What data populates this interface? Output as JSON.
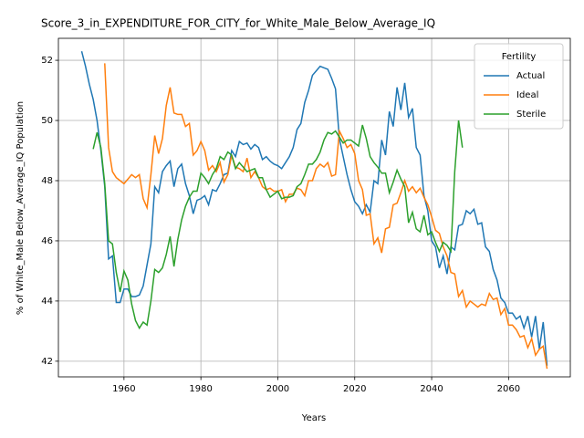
{
  "chart_data": {
    "type": "line",
    "title": "Score_3_in_EXPENDITURE_FOR_CITY_for_White_Male_Below_Average_IQ",
    "x_label": "Years",
    "y_label": "% of White_Male Below_Average_IQ Population",
    "legend_title": "Fertility",
    "legend_corner": "upper right",
    "grid": true,
    "xlim": [
      1942.95,
      2076.05
    ],
    "ylim": [
      41.48,
      52.73
    ],
    "xticks": [
      1960,
      1980,
      2000,
      2020,
      2040,
      2060
    ],
    "yticks": [
      42,
      44,
      46,
      48,
      50,
      52
    ],
    "x": [
      1949,
      1950,
      1951,
      1952,
      1953,
      1954,
      1955,
      1956,
      1957,
      1958,
      1959,
      1960,
      1961,
      1962,
      1963,
      1964,
      1965,
      1966,
      1967,
      1968,
      1969,
      1970,
      1971,
      1972,
      1973,
      1974,
      1975,
      1976,
      1977,
      1978,
      1979,
      1980,
      1981,
      1982,
      1983,
      1984,
      1985,
      1986,
      1987,
      1988,
      1989,
      1990,
      1991,
      1992,
      1993,
      1994,
      1995,
      1996,
      1997,
      1998,
      1999,
      2000,
      2001,
      2002,
      2003,
      2004,
      2005,
      2006,
      2007,
      2008,
      2009,
      2010,
      2011,
      2012,
      2013,
      2014,
      2015,
      2016,
      2017,
      2018,
      2019,
      2020,
      2021,
      2022,
      2023,
      2024,
      2025,
      2026,
      2027,
      2028,
      2029,
      2030,
      2031,
      2032,
      2033,
      2034,
      2035,
      2036,
      2037,
      2038,
      2039,
      2040,
      2041,
      2042,
      2043,
      2044,
      2045,
      2046,
      2047,
      2048,
      2049,
      2050,
      2051,
      2052,
      2053,
      2054,
      2055,
      2056,
      2057,
      2058,
      2059,
      2060,
      2061,
      2062,
      2063,
      2064,
      2065,
      2066,
      2067,
      2068,
      2069,
      2070
    ],
    "series": [
      {
        "name": "Actual",
        "color": "#1f77b4",
        "values": [
          52.3,
          51.8,
          51.2,
          50.7,
          50.0,
          49.0,
          47.8,
          45.4,
          45.5,
          43.95,
          43.95,
          44.4,
          44.4,
          44.15,
          44.15,
          44.2,
          44.5,
          45.2,
          45.9,
          47.8,
          47.6,
          48.3,
          48.5,
          48.65,
          47.8,
          48.4,
          48.55,
          47.9,
          47.5,
          46.9,
          47.35,
          47.4,
          47.5,
          47.2,
          47.7,
          47.65,
          47.9,
          48.2,
          48.25,
          49.0,
          48.8,
          49.3,
          49.2,
          49.25,
          49.05,
          49.2,
          49.1,
          48.7,
          48.8,
          48.65,
          48.55,
          48.5,
          48.4,
          48.6,
          48.8,
          49.1,
          49.7,
          49.9,
          50.6,
          51.0,
          51.5,
          51.65,
          51.8,
          51.75,
          51.7,
          51.4,
          51.05,
          49.4,
          48.8,
          48.2,
          47.7,
          47.3,
          47.15,
          46.9,
          47.2,
          46.95,
          48.0,
          47.9,
          49.35,
          48.85,
          50.3,
          49.8,
          51.1,
          50.35,
          51.25,
          50.1,
          50.4,
          49.1,
          48.85,
          47.5,
          47.0,
          46.0,
          45.8,
          45.1,
          45.5,
          44.9,
          45.8,
          45.7,
          46.5,
          46.55,
          47.0,
          46.9,
          47.05,
          46.55,
          46.6,
          45.8,
          45.65,
          45.05,
          44.7,
          44.1,
          43.95,
          43.6,
          43.6,
          43.4,
          43.5,
          43.1,
          43.5,
          42.8,
          43.5,
          42.4,
          43.3,
          41.85
        ]
      },
      {
        "name": "Ideal",
        "color": "#ff7f0e",
        "values": [
          null,
          null,
          null,
          null,
          null,
          null,
          51.9,
          49.1,
          48.3,
          48.1,
          48.0,
          47.9,
          48.05,
          48.2,
          48.1,
          48.2,
          47.4,
          47.1,
          48.2,
          49.5,
          48.9,
          49.4,
          50.5,
          51.1,
          50.25,
          50.2,
          50.2,
          49.8,
          49.9,
          48.85,
          49.0,
          49.3,
          49.0,
          48.35,
          48.5,
          48.3,
          48.6,
          47.95,
          48.2,
          48.85,
          48.45,
          48.4,
          48.3,
          48.75,
          48.1,
          48.3,
          48.1,
          47.8,
          47.7,
          47.75,
          47.65,
          47.65,
          47.7,
          47.3,
          47.55,
          47.55,
          47.75,
          47.7,
          47.5,
          48.0,
          48.0,
          48.4,
          48.55,
          48.45,
          48.6,
          48.15,
          48.2,
          49.65,
          49.4,
          49.1,
          49.2,
          48.9,
          48.0,
          47.7,
          46.85,
          46.9,
          45.9,
          46.1,
          45.6,
          46.4,
          46.45,
          47.2,
          47.25,
          47.6,
          48.0,
          47.65,
          47.8,
          47.6,
          47.75,
          47.45,
          47.2,
          46.8,
          46.35,
          46.25,
          45.8,
          45.5,
          44.95,
          44.9,
          44.15,
          44.35,
          43.8,
          44.0,
          43.9,
          43.8,
          43.9,
          43.85,
          44.25,
          44.05,
          44.1,
          43.55,
          43.75,
          43.2,
          43.2,
          43.05,
          42.8,
          42.85,
          42.45,
          42.75,
          42.2,
          42.4,
          42.5,
          41.75
        ]
      },
      {
        "name": "Sterile",
        "color": "#2ca02c",
        "values": [
          null,
          null,
          null,
          49.05,
          49.6,
          49.1,
          47.9,
          46.0,
          45.9,
          44.95,
          44.3,
          45.0,
          44.7,
          43.9,
          43.35,
          43.1,
          43.3,
          43.2,
          44.0,
          45.05,
          44.95,
          45.1,
          45.55,
          46.15,
          45.15,
          46.05,
          46.7,
          47.15,
          47.45,
          47.65,
          47.65,
          48.25,
          48.1,
          47.9,
          48.2,
          48.4,
          48.8,
          48.7,
          48.95,
          48.85,
          48.4,
          48.6,
          48.45,
          48.3,
          48.35,
          48.4,
          48.1,
          48.1,
          47.7,
          47.45,
          47.55,
          47.65,
          47.4,
          47.45,
          47.45,
          47.5,
          47.8,
          47.9,
          48.2,
          48.55,
          48.55,
          48.7,
          48.95,
          49.35,
          49.6,
          49.55,
          49.65,
          49.45,
          49.25,
          49.35,
          49.35,
          49.25,
          49.15,
          49.85,
          49.4,
          48.8,
          48.6,
          48.45,
          48.25,
          48.25,
          47.6,
          47.95,
          48.35,
          48.05,
          47.8,
          46.6,
          46.95,
          46.4,
          46.3,
          46.85,
          46.2,
          46.3,
          45.95,
          45.65,
          45.95,
          45.85,
          45.65,
          48.3,
          50.0,
          49.1,
          null,
          null,
          null,
          null,
          null,
          null,
          null,
          null,
          null,
          null,
          null,
          null,
          null,
          null,
          null,
          null,
          null,
          null,
          null,
          null,
          null,
          null
        ]
      }
    ]
  }
}
